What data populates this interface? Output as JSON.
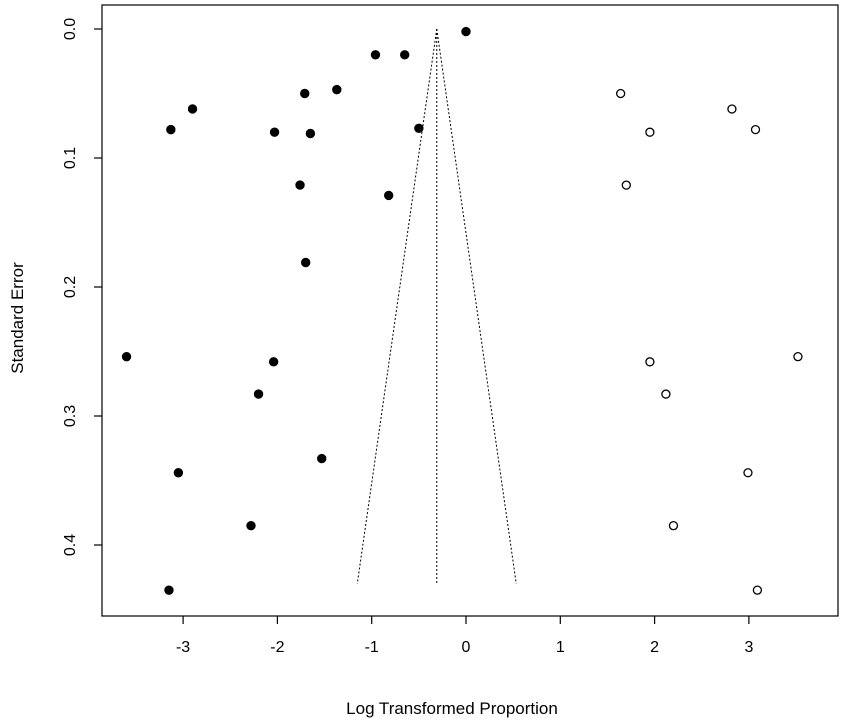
{
  "chart_data": {
    "type": "scatter",
    "title": "",
    "xlabel": "Log Transformed Proportion",
    "ylabel": "Standard Error",
    "xlim": [
      -3.75,
      3.75
    ],
    "ylim": [
      0.0,
      0.45
    ],
    "y_reversed": true,
    "x_ticks": [
      -3,
      -2,
      -1,
      0,
      1,
      2,
      3
    ],
    "x_tick_labels": [
      "-3",
      "-2",
      "-1",
      "0",
      "1",
      "2",
      "3"
    ],
    "y_ticks": [
      0.0,
      0.1,
      0.2,
      0.3,
      0.4
    ],
    "y_tick_labels": [
      "0.0",
      "0.1",
      "0.2",
      "0.3",
      "0.4"
    ],
    "grid": false,
    "legend": "none",
    "funnel": {
      "center": -0.31,
      "se_max": 0.43,
      "z": 1.96
    },
    "series": [
      {
        "marker": "filled-circle",
        "color": "#000000",
        "points": [
          {
            "x": 0.0,
            "y": 0.002
          },
          {
            "x": -0.96,
            "y": 0.02
          },
          {
            "x": -0.65,
            "y": 0.02
          },
          {
            "x": -1.37,
            "y": 0.047
          },
          {
            "x": -1.71,
            "y": 0.05
          },
          {
            "x": -2.9,
            "y": 0.062
          },
          {
            "x": -3.13,
            "y": 0.078
          },
          {
            "x": -2.03,
            "y": 0.08
          },
          {
            "x": -1.65,
            "y": 0.081
          },
          {
            "x": -0.5,
            "y": 0.077
          },
          {
            "x": -1.76,
            "y": 0.121
          },
          {
            "x": -0.82,
            "y": 0.129
          },
          {
            "x": -1.7,
            "y": 0.181
          },
          {
            "x": -3.6,
            "y": 0.254
          },
          {
            "x": -2.04,
            "y": 0.258
          },
          {
            "x": -2.2,
            "y": 0.283
          },
          {
            "x": -1.53,
            "y": 0.333
          },
          {
            "x": -3.05,
            "y": 0.344
          },
          {
            "x": -2.28,
            "y": 0.385
          },
          {
            "x": -3.15,
            "y": 0.435
          }
        ]
      },
      {
        "marker": "open-circle",
        "color": "#000000",
        "points": [
          {
            "x": 1.64,
            "y": 0.05
          },
          {
            "x": 2.82,
            "y": 0.062
          },
          {
            "x": 1.95,
            "y": 0.08
          },
          {
            "x": 3.07,
            "y": 0.078
          },
          {
            "x": 1.7,
            "y": 0.121
          },
          {
            "x": 3.52,
            "y": 0.254
          },
          {
            "x": 1.95,
            "y": 0.258
          },
          {
            "x": 2.12,
            "y": 0.283
          },
          {
            "x": 2.99,
            "y": 0.344
          },
          {
            "x": 2.2,
            "y": 0.385
          },
          {
            "x": 3.09,
            "y": 0.435
          }
        ]
      }
    ]
  }
}
